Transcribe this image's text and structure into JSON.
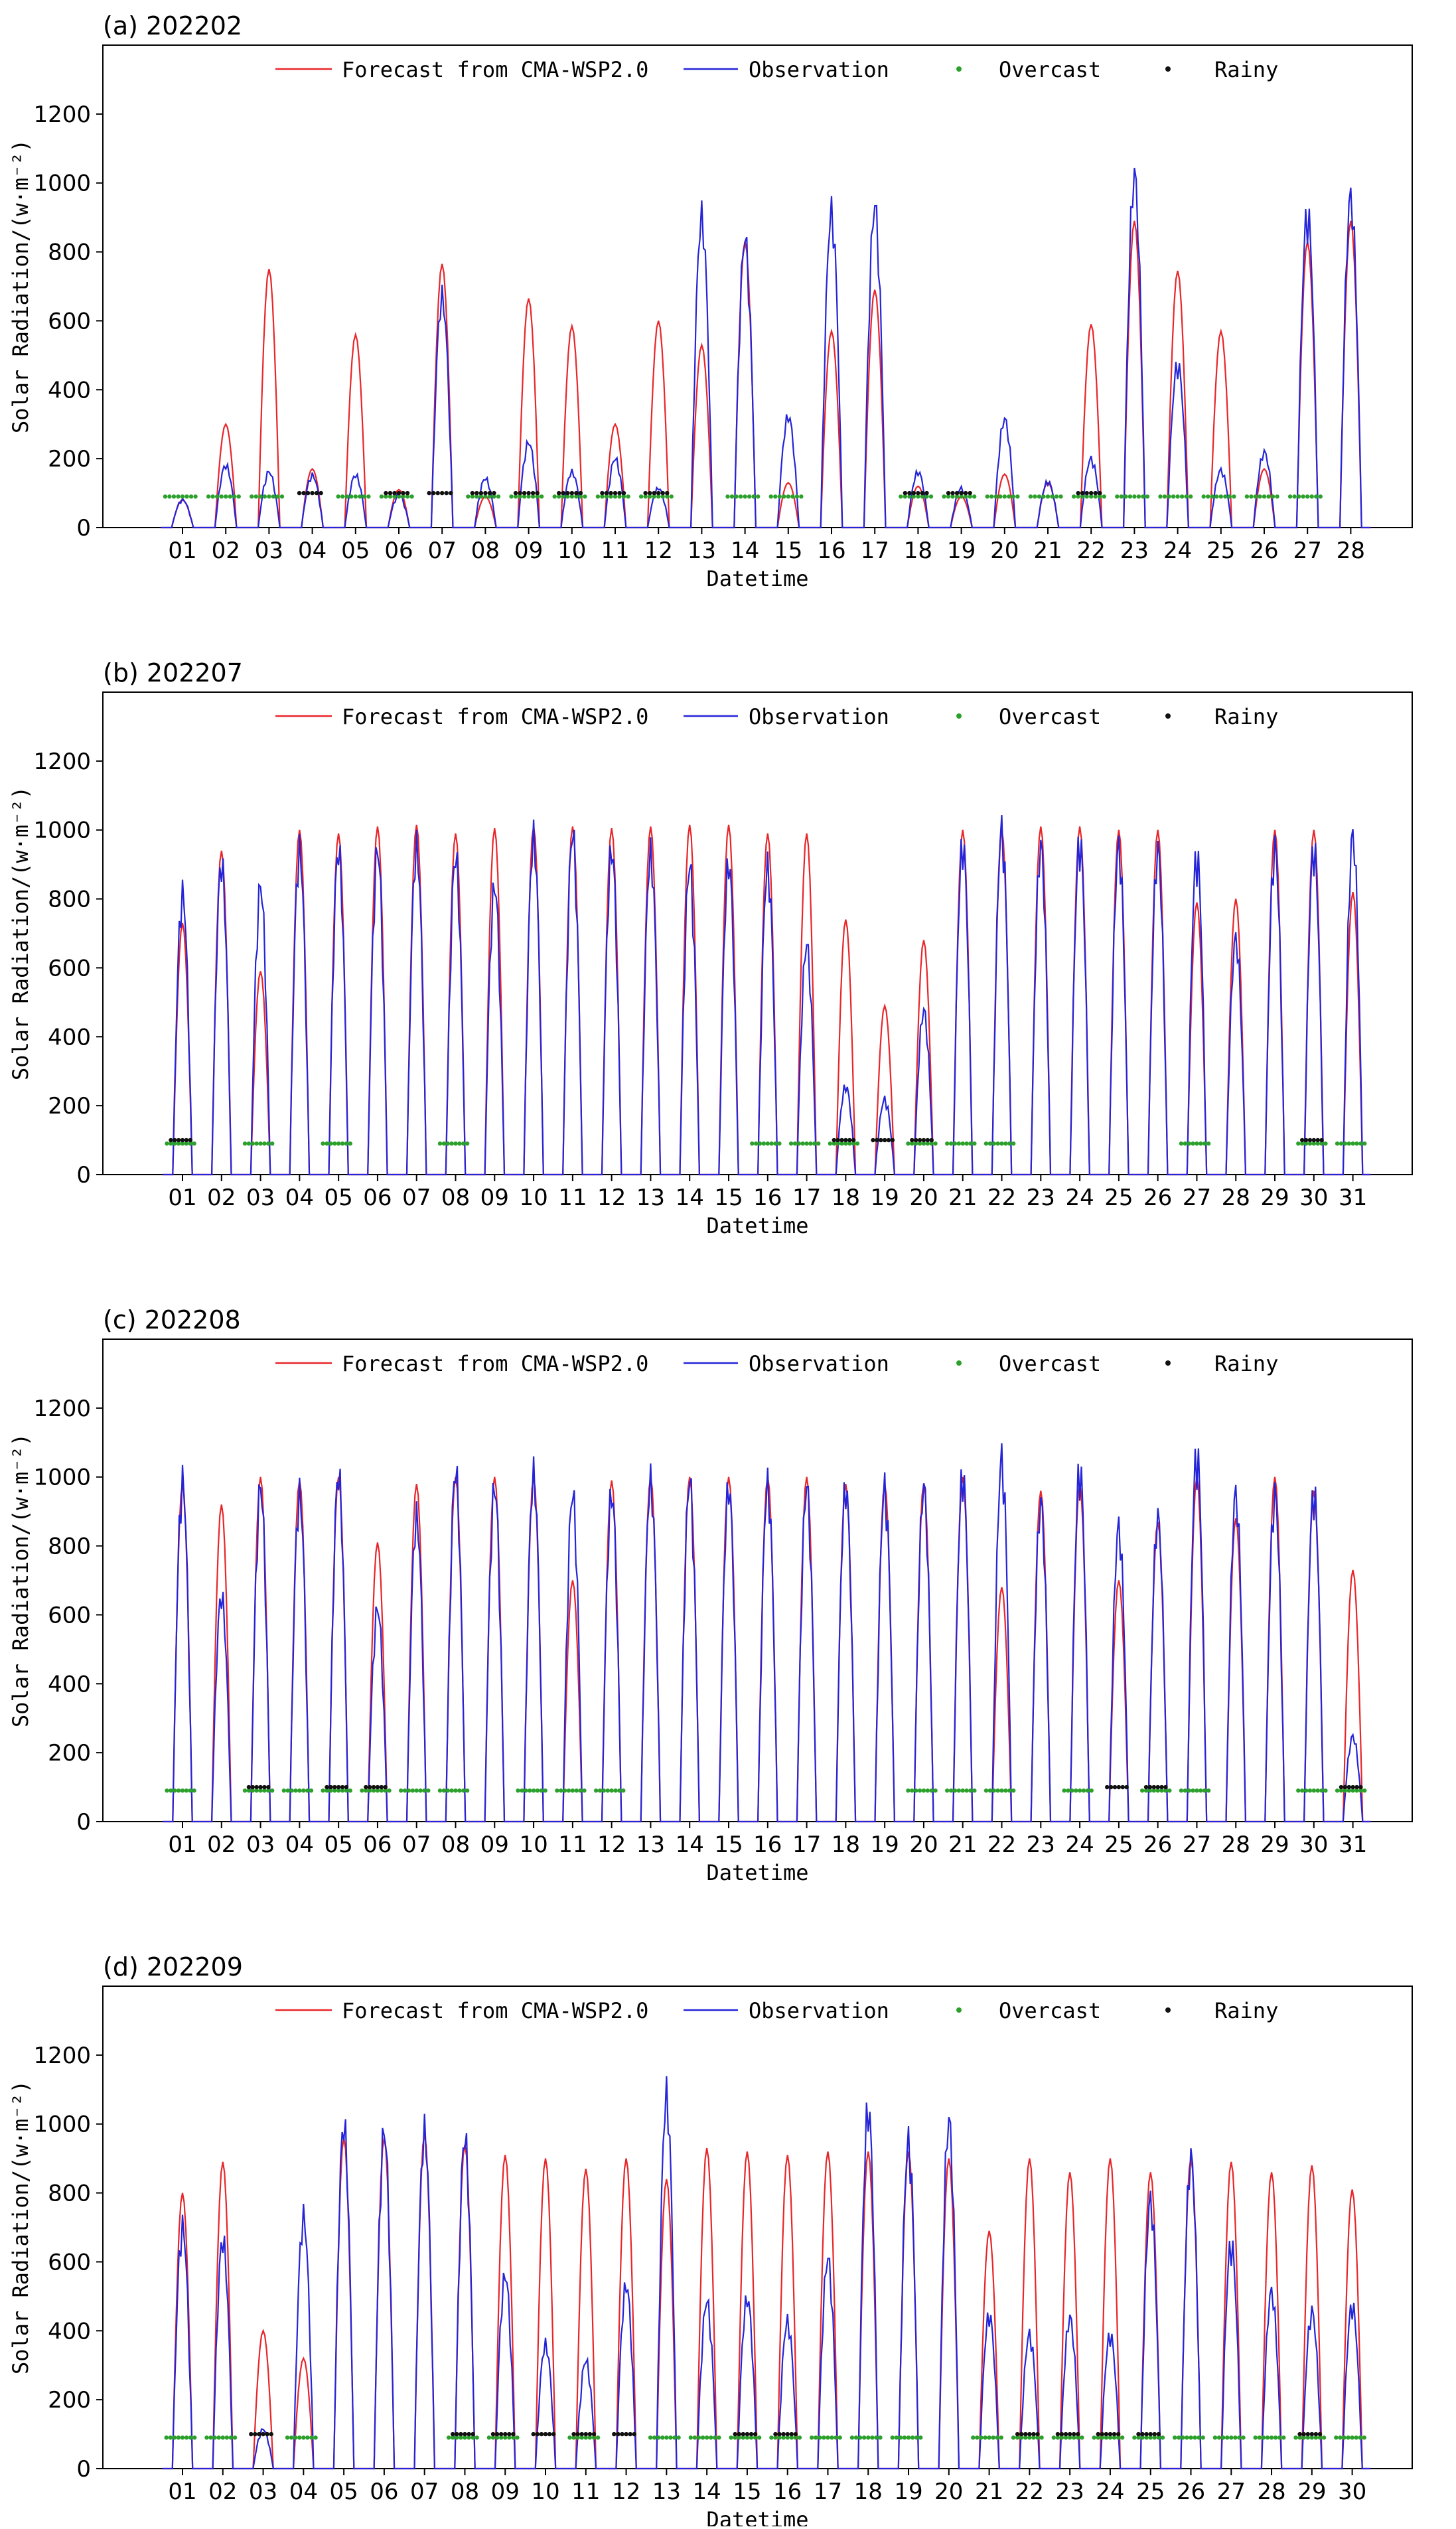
{
  "chart_data": [
    {
      "type": "line",
      "panel_label": "(a)",
      "title": "202202",
      "xlabel": "Datetime",
      "ylabel": "Solar Radiation/(w·m⁻²)",
      "ylim": [
        0,
        1400
      ],
      "yticks": [
        0,
        200,
        400,
        600,
        800,
        1000,
        1200
      ],
      "days": 28,
      "xticks": [
        "01",
        "02",
        "03",
        "04",
        "05",
        "06",
        "07",
        "08",
        "09",
        "10",
        "11",
        "12",
        "13",
        "14",
        "15",
        "16",
        "17",
        "18",
        "19",
        "20",
        "21",
        "22",
        "23",
        "24",
        "25",
        "26",
        "27",
        "28"
      ],
      "series": [
        {
          "name": "Forecast from CMA-WSP2.0",
          "daily_peaks": [
            80,
            300,
            750,
            170,
            560,
            110,
            765,
            90,
            665,
            585,
            300,
            600,
            530,
            830,
            130,
            570,
            690,
            120,
            90,
            155,
            130,
            590,
            890,
            745,
            570,
            170,
            830,
            890
          ]
        },
        {
          "name": "Observation",
          "daily_peaks": [
            85,
            190,
            170,
            160,
            160,
            100,
            705,
            150,
            260,
            170,
            210,
            120,
            950,
            880,
            340,
            965,
            980,
            170,
            120,
            330,
            140,
            210,
            1075,
            500,
            175,
            230,
            965,
            1010
          ]
        },
        {
          "name": "Overcast",
          "type": "scatter",
          "days": [
            1,
            2,
            3,
            5,
            6,
            8,
            9,
            10,
            11,
            12,
            14,
            15,
            18,
            19,
            20,
            21,
            22,
            23,
            24,
            25,
            26,
            27
          ]
        },
        {
          "name": "Rainy",
          "type": "scatter",
          "days": [
            4,
            6,
            7,
            8,
            9,
            10,
            11,
            12,
            18,
            19,
            22
          ]
        }
      ]
    },
    {
      "type": "line",
      "panel_label": "(b)",
      "title": "202207",
      "xlabel": "Datetime",
      "ylabel": "Solar Radiation/(w·m⁻²)",
      "ylim": [
        0,
        1400
      ],
      "yticks": [
        0,
        200,
        400,
        600,
        800,
        1000,
        1200
      ],
      "days": 31,
      "xticks": [
        "01",
        "02",
        "03",
        "04",
        "05",
        "06",
        "07",
        "08",
        "09",
        "10",
        "11",
        "12",
        "13",
        "14",
        "15",
        "16",
        "17",
        "18",
        "19",
        "20",
        "21",
        "22",
        "23",
        "24",
        "25",
        "26",
        "27",
        "28",
        "29",
        "30",
        "31"
      ],
      "series": [
        {
          "name": "Forecast from CMA-WSP2.0",
          "daily_peaks": [
            730,
            940,
            590,
            1000,
            990,
            1010,
            1015,
            990,
            1005,
            1010,
            1010,
            1005,
            1010,
            1015,
            1015,
            990,
            990,
            740,
            490,
            680,
            1000,
            1000,
            1010,
            1010,
            1000,
            1000,
            790,
            800,
            1000,
            1000,
            820
          ]
        },
        {
          "name": "Observation",
          "daily_peaks": [
            860,
            950,
            880,
            990,
            990,
            990,
            1000,
            970,
            880,
            1030,
            1040,
            990,
            980,
            940,
            950,
            940,
            700,
            270,
            230,
            500,
            1010,
            1055,
            1000,
            1020,
            1000,
            990,
            980,
            720,
            1000,
            1000,
            1035
          ]
        },
        {
          "name": "Overcast",
          "type": "scatter",
          "days": [
            1,
            3,
            5,
            8,
            16,
            17,
            18,
            20,
            21,
            22,
            27,
            30,
            31
          ]
        },
        {
          "name": "Rainy",
          "type": "scatter",
          "days": [
            1,
            18,
            19,
            20,
            30
          ]
        }
      ]
    },
    {
      "type": "line",
      "panel_label": "(c)",
      "title": "202208",
      "xlabel": "Datetime",
      "ylabel": "Solar Radiation/(w·m⁻²)",
      "ylim": [
        0,
        1400
      ],
      "yticks": [
        0,
        200,
        400,
        600,
        800,
        1000,
        1200
      ],
      "days": 31,
      "xticks": [
        "01",
        "02",
        "03",
        "04",
        "05",
        "06",
        "07",
        "08",
        "09",
        "10",
        "11",
        "12",
        "13",
        "14",
        "15",
        "16",
        "17",
        "18",
        "19",
        "20",
        "21",
        "22",
        "23",
        "24",
        "25",
        "26",
        "27",
        "28",
        "29",
        "30",
        "31"
      ],
      "series": [
        {
          "name": "Forecast from CMA-WSP2.0",
          "daily_peaks": [
            980,
            920,
            1000,
            990,
            1000,
            810,
            980,
            1000,
            1000,
            1000,
            700,
            990,
            1000,
            1000,
            1000,
            1000,
            1000,
            980,
            980,
            980,
            1000,
            680,
            960,
            980,
            700,
            870,
            1000,
            880,
            1000,
            960,
            730
          ]
        },
        {
          "name": "Observation",
          "daily_peaks": [
            1040,
            690,
            1020,
            1000,
            1060,
            650,
            930,
            1070,
            1020,
            1060,
            1000,
            1000,
            1040,
            1040,
            1020,
            1030,
            1020,
            1020,
            1020,
            1020,
            1060,
            1110,
            970,
            1080,
            900,
            930,
            1130,
            1000,
            1000,
            1010,
            260
          ]
        },
        {
          "name": "Overcast",
          "type": "scatter",
          "days": [
            1,
            3,
            4,
            5,
            6,
            7,
            8,
            10,
            11,
            12,
            20,
            21,
            22,
            24,
            26,
            27,
            30,
            31
          ]
        },
        {
          "name": "Rainy",
          "type": "scatter",
          "days": [
            3,
            5,
            6,
            25,
            26,
            31
          ]
        }
      ]
    },
    {
      "type": "line",
      "panel_label": "(d)",
      "title": "202209",
      "xlabel": "Datetime",
      "ylabel": "Solar Radiation/(w·m⁻²)",
      "ylim": [
        0,
        1400
      ],
      "yticks": [
        0,
        200,
        400,
        600,
        800,
        1000,
        1200
      ],
      "days": 30,
      "xticks": [
        "01",
        "02",
        "03",
        "04",
        "05",
        "06",
        "07",
        "08",
        "09",
        "10",
        "11",
        "12",
        "13",
        "14",
        "15",
        "16",
        "17",
        "18",
        "19",
        "20",
        "21",
        "22",
        "23",
        "24",
        "25",
        "26",
        "27",
        "28",
        "29",
        "30"
      ],
      "series": [
        {
          "name": "Forecast from CMA-WSP2.0",
          "daily_peaks": [
            800,
            890,
            400,
            320,
            960,
            960,
            970,
            940,
            910,
            900,
            870,
            900,
            840,
            930,
            920,
            910,
            920,
            920,
            920,
            900,
            690,
            900,
            860,
            900,
            860,
            900,
            890,
            860,
            880,
            810
          ]
        },
        {
          "name": "Observation",
          "daily_peaks": [
            740,
            700,
            120,
            770,
            1050,
            1030,
            1030,
            1010,
            590,
            380,
            330,
            560,
            1140,
            510,
            520,
            450,
            640,
            1100,
            1000,
            1060,
            470,
            410,
            460,
            410,
            820,
            950,
            690,
            540,
            480,
            500
          ]
        },
        {
          "name": "Overcast",
          "type": "scatter",
          "days": [
            1,
            2,
            4,
            8,
            9,
            11,
            13,
            14,
            15,
            16,
            17,
            18,
            19,
            21,
            22,
            23,
            24,
            25,
            26,
            27,
            28,
            29,
            30
          ]
        },
        {
          "name": "Rainy",
          "type": "scatter",
          "days": [
            3,
            8,
            9,
            10,
            11,
            12,
            15,
            16,
            22,
            23,
            24,
            25,
            29
          ]
        }
      ]
    }
  ],
  "legend_labels": {
    "forecast": "Forecast from CMA-WSP2.0",
    "observation": "Observation",
    "overcast": "Overcast",
    "rainy": "Rainy"
  },
  "colors": {
    "forecast": "#e8262a",
    "observation": "#2424d8",
    "overcast": "#2ca02c",
    "rainy": "#111111",
    "axis": "#000000"
  }
}
